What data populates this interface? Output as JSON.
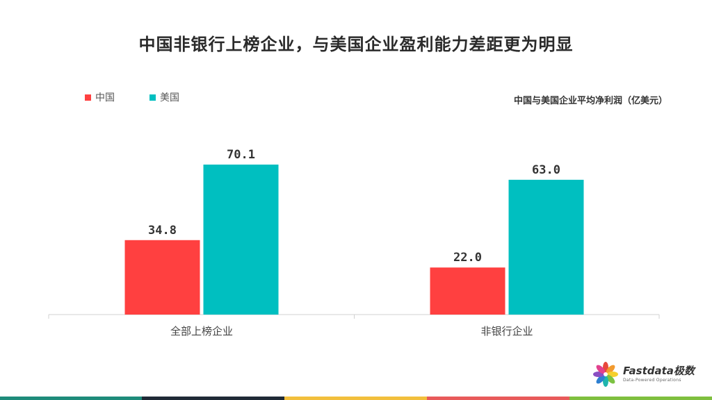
{
  "title": "中国非银行上榜企业，与美国企业盈利能力差距更为明显",
  "subtitle": "中国与美国企业平均净利润（亿美元）",
  "legend": {
    "china": "中国",
    "usa": "美国"
  },
  "colors": {
    "china": "#ff4040",
    "usa": "#00bfc0",
    "axis": "#d0d0d0",
    "label": "#333333"
  },
  "brand": {
    "name": "Fastdata极数",
    "tagline": "Data-Powered Operations"
  },
  "footer_colors": [
    "#1e8b7a",
    "#1f2a36",
    "#f2bf3c",
    "#e85a5a",
    "#7fbf3f"
  ],
  "chart_data": {
    "type": "bar",
    "title": "中国非银行上榜企业，与美国企业盈利能力差距更为明显",
    "subtitle": "中国与美国企业平均净利润（亿美元）",
    "categories": [
      "全部上榜企业",
      "非银行企业"
    ],
    "series": [
      {
        "name": "中国",
        "values": [
          34.8,
          22.0
        ]
      },
      {
        "name": "美国",
        "values": [
          70.1,
          63.0
        ]
      }
    ],
    "value_labels": [
      [
        "34.8",
        "22.0"
      ],
      [
        "70.1",
        "63.0"
      ]
    ],
    "ylim": [
      0,
      80
    ],
    "grid": false,
    "legend_position": "top-left"
  }
}
